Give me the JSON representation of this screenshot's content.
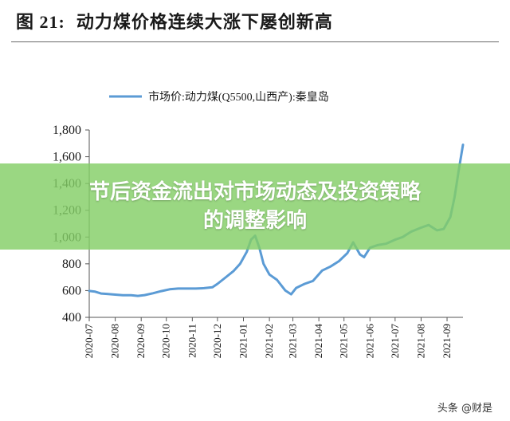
{
  "figure": {
    "number": "图 21:",
    "title": "动力煤价格连续大涨下屡创新高"
  },
  "overlay": {
    "line1": "节后资金流出对市场动态及投资策略",
    "line2": "的调整影响"
  },
  "watermark": "头条 @财是",
  "colors": {
    "line": "#5b9bd5",
    "banner": "#84ce66"
  },
  "chart_data": {
    "type": "line",
    "title": "",
    "xlabel": "",
    "ylabel": "",
    "ylim": [
      400,
      1800
    ],
    "yticks": [
      400,
      600,
      800,
      1000,
      1200,
      1400,
      1600,
      1800
    ],
    "ytick_labels": [
      "400",
      "600",
      "800",
      "1,000",
      "1,200",
      "1,400",
      "1,600",
      "1,800"
    ],
    "xticks": [
      "2020-07",
      "2020-08",
      "2020-09",
      "2020-10",
      "2020-11",
      "2020-12",
      "2021-01",
      "2021-02",
      "2021-03",
      "2021-04",
      "2021-05",
      "2021-06",
      "2021-07",
      "2021-08",
      "2021-09"
    ],
    "grid": false,
    "legend": "top-center",
    "series": [
      {
        "name": "市场价:动力煤(Q5500,山西产):秦皇岛",
        "x": [
          "2020-07-01",
          "2020-07-08",
          "2020-07-15",
          "2020-07-22",
          "2020-08-01",
          "2020-08-10",
          "2020-08-20",
          "2020-08-28",
          "2020-09-05",
          "2020-09-15",
          "2020-09-25",
          "2020-10-05",
          "2020-10-15",
          "2020-10-25",
          "2020-11-05",
          "2020-11-15",
          "2020-11-25",
          "2020-12-01",
          "2020-12-10",
          "2020-12-20",
          "2020-12-28",
          "2021-01-05",
          "2021-01-10",
          "2021-01-15",
          "2021-01-20",
          "2021-01-25",
          "2021-02-01",
          "2021-02-10",
          "2021-02-20",
          "2021-02-27",
          "2021-03-05",
          "2021-03-15",
          "2021-03-25",
          "2021-04-05",
          "2021-04-15",
          "2021-04-25",
          "2021-05-05",
          "2021-05-12",
          "2021-05-20",
          "2021-05-25",
          "2021-06-01",
          "2021-06-10",
          "2021-06-20",
          "2021-07-01",
          "2021-07-10",
          "2021-07-20",
          "2021-08-01",
          "2021-08-10",
          "2021-08-20",
          "2021-08-28",
          "2021-09-05",
          "2021-09-10",
          "2021-09-15",
          "2021-09-20"
        ],
        "values": [
          597,
          592,
          578,
          575,
          570,
          565,
          565,
          560,
          566,
          580,
          596,
          610,
          615,
          615,
          615,
          618,
          625,
          650,
          695,
          745,
          800,
          890,
          980,
          1010,
          920,
          800,
          720,
          680,
          600,
          572,
          620,
          650,
          672,
          750,
          780,
          820,
          880,
          960,
          870,
          850,
          920,
          940,
          950,
          980,
          1000,
          1040,
          1070,
          1090,
          1050,
          1060,
          1150,
          1300,
          1500,
          1690
        ]
      }
    ]
  }
}
